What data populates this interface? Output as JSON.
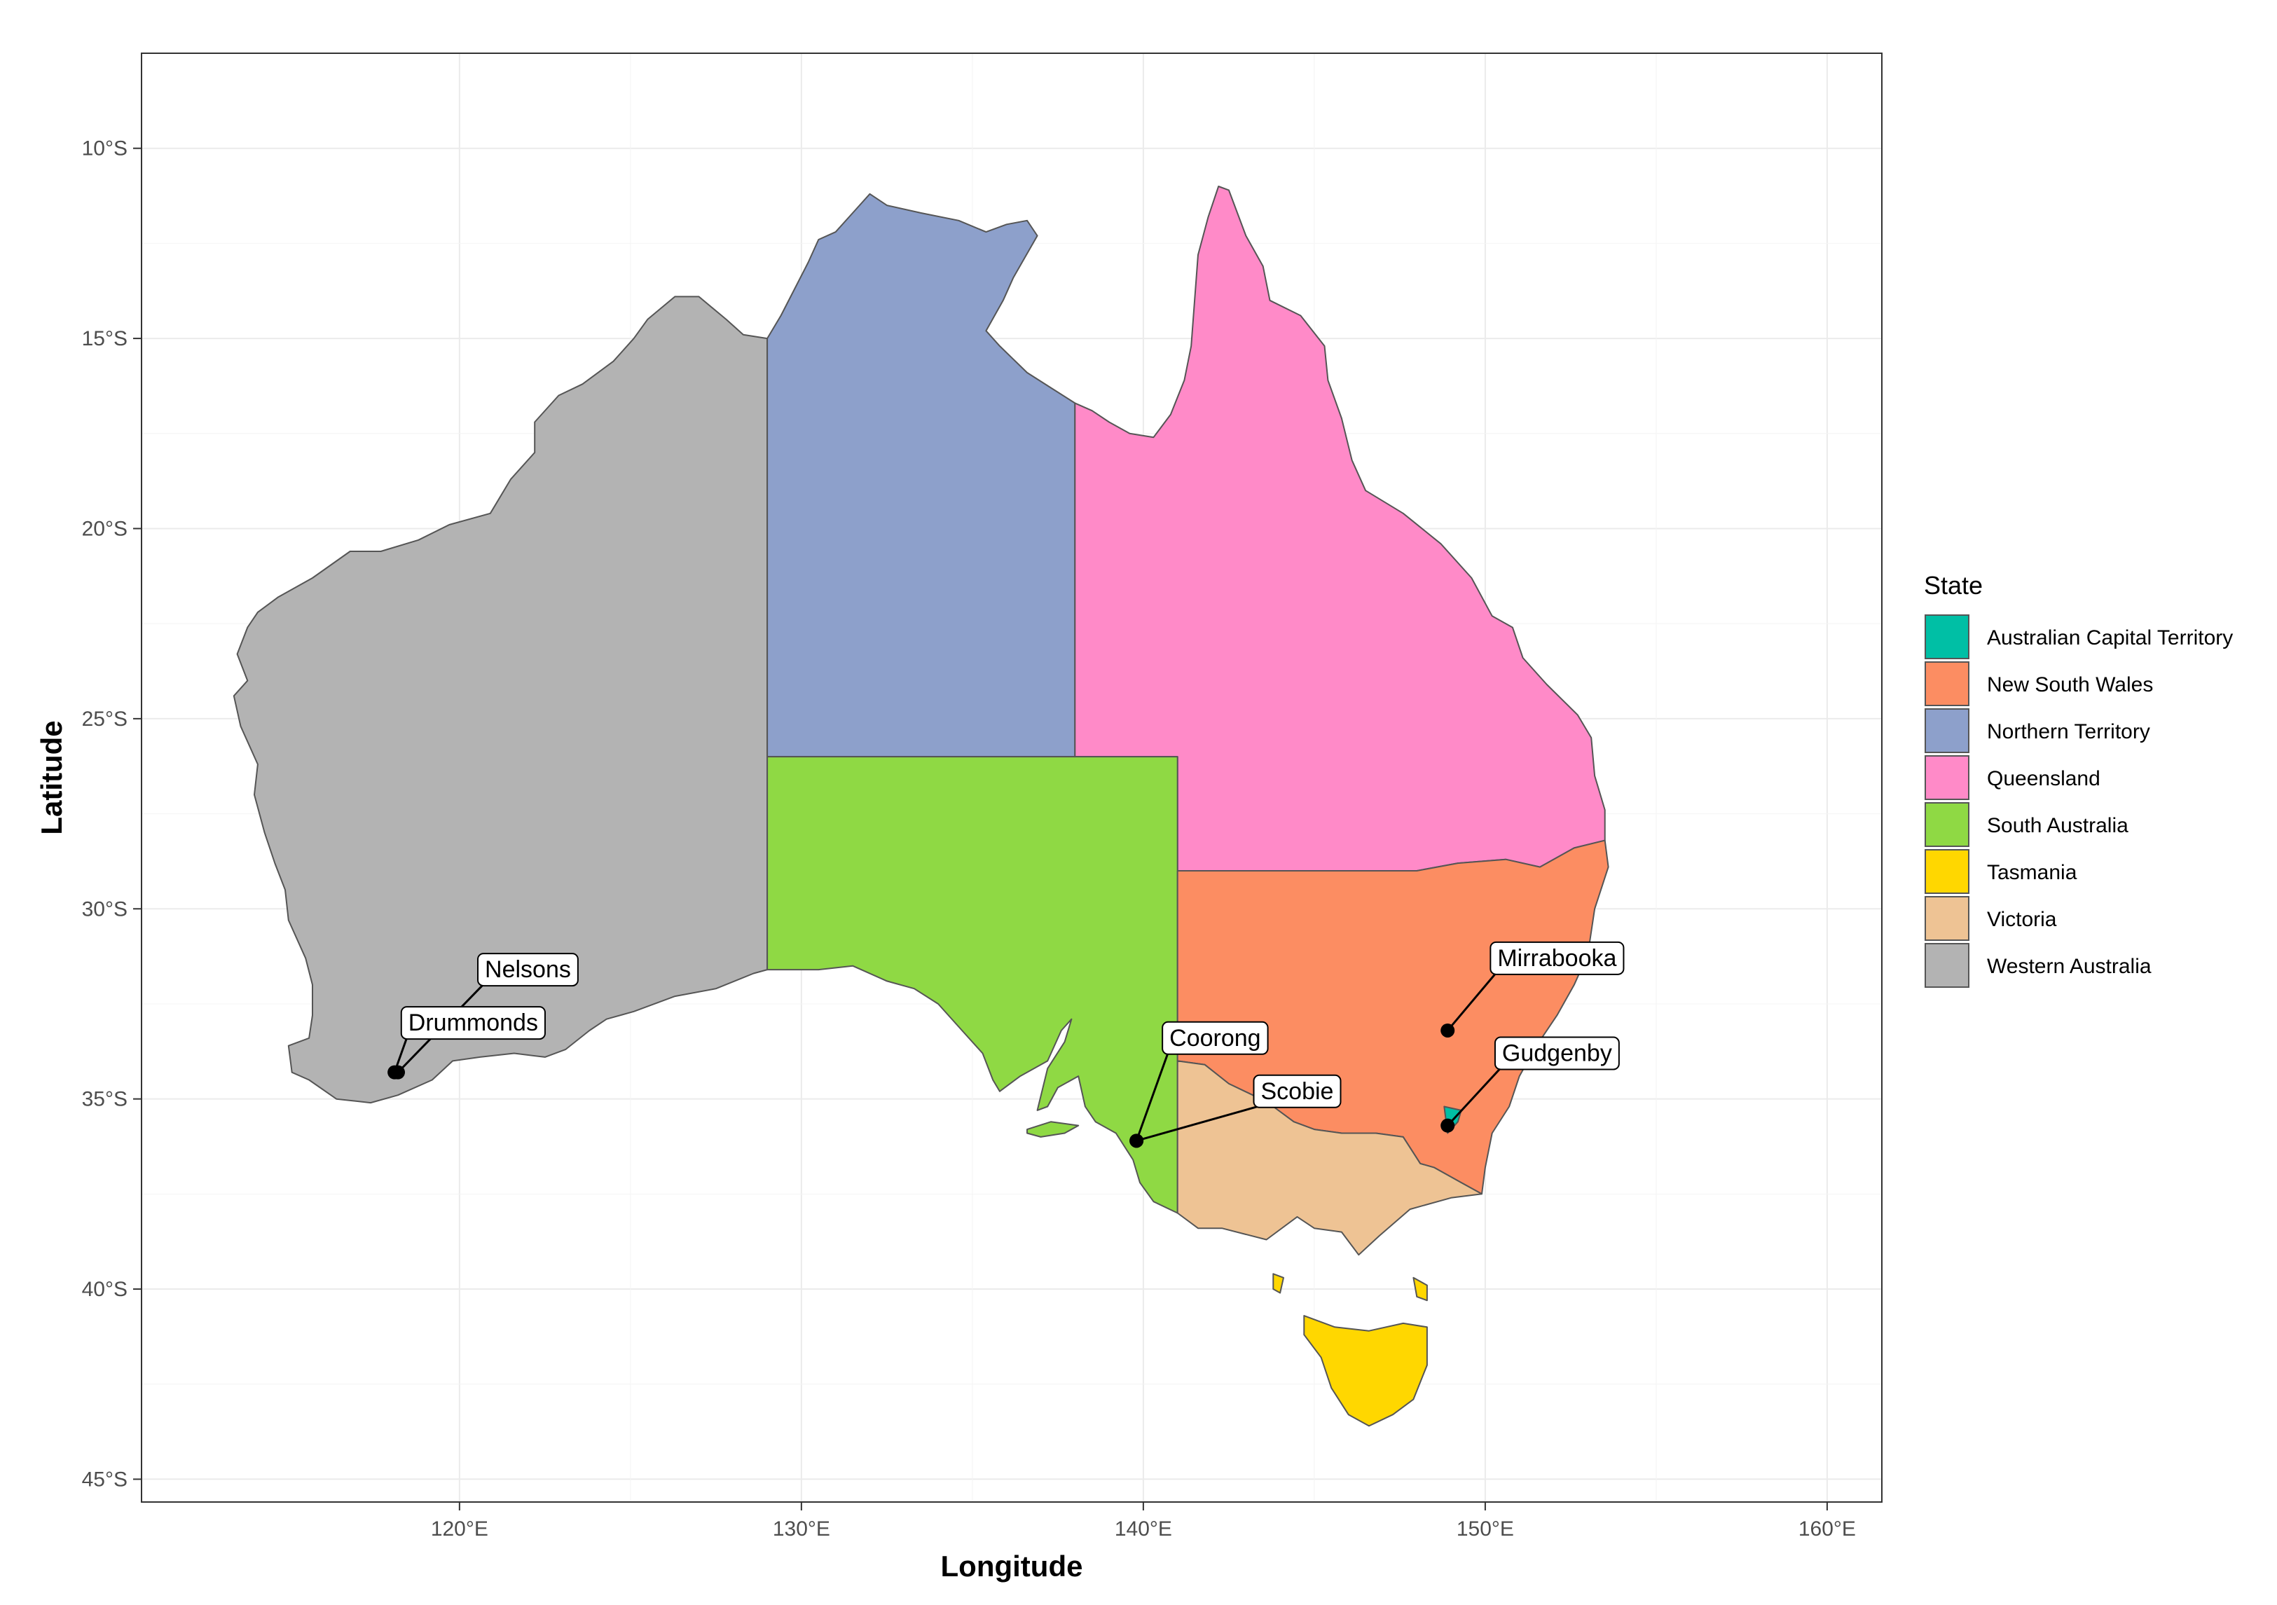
{
  "map": {
    "x_axis_title": "Longitude",
    "y_axis_title": "Latitude",
    "x_ticks": [
      {
        "lon": 120,
        "label": "120°E"
      },
      {
        "lon": 130,
        "label": "130°E"
      },
      {
        "lon": 140,
        "label": "140°E"
      },
      {
        "lon": 150,
        "label": "150°E"
      },
      {
        "lon": 160,
        "label": "160°E"
      }
    ],
    "y_ticks": [
      {
        "lat": -10,
        "label": "10°S"
      },
      {
        "lat": -15,
        "label": "15°S"
      },
      {
        "lat": -20,
        "label": "20°S"
      },
      {
        "lat": -25,
        "label": "25°S"
      },
      {
        "lat": -30,
        "label": "30°S"
      },
      {
        "lat": -35,
        "label": "35°S"
      },
      {
        "lat": -40,
        "label": "40°S"
      },
      {
        "lat": -45,
        "label": "45°S"
      }
    ],
    "extent": {
      "lon": [
        110.7,
        161.6
      ],
      "lat": [
        -45.6,
        -7.5
      ]
    },
    "legend": {
      "title": "State",
      "items": [
        {
          "key": "act",
          "label": "Australian Capital Territory",
          "color": "#00BFA5"
        },
        {
          "key": "nsw",
          "label": "New South Wales",
          "color": "#FC8D62"
        },
        {
          "key": "nt",
          "label": "Northern Territory",
          "color": "#8DA0CB"
        },
        {
          "key": "qld",
          "label": "Queensland",
          "color": "#FF8AC8"
        },
        {
          "key": "sa",
          "label": "South Australia",
          "color": "#8FD944"
        },
        {
          "key": "tas",
          "label": "Tasmania",
          "color": "#FFD700"
        },
        {
          "key": "vic",
          "label": "Victoria",
          "color": "#EEC394"
        },
        {
          "key": "wa",
          "label": "Western Australia",
          "color": "#B3B3B3"
        }
      ]
    },
    "sites": [
      {
        "name": "Nelsons",
        "lon": 118.2,
        "lat": -34.3,
        "label_lon": 122.0,
        "label_lat": -31.6
      },
      {
        "name": "Drummonds",
        "lon": 118.1,
        "lat": -34.3,
        "label_lon": 120.4,
        "label_lat": -33.0
      },
      {
        "name": "Coorong",
        "lon": 139.8,
        "lat": -36.1,
        "label_lon": 142.1,
        "label_lat": -33.4
      },
      {
        "name": "Scobie",
        "lon": 139.8,
        "lat": -36.1,
        "label_lon": 144.5,
        "label_lat": -34.8
      },
      {
        "name": "Mirrabooka",
        "lon": 148.9,
        "lat": -33.2,
        "label_lon": 152.1,
        "label_lat": -31.3
      },
      {
        "name": "Gudgenby",
        "lon": 148.9,
        "lat": -35.7,
        "label_lon": 152.1,
        "label_lat": -33.8
      }
    ]
  }
}
